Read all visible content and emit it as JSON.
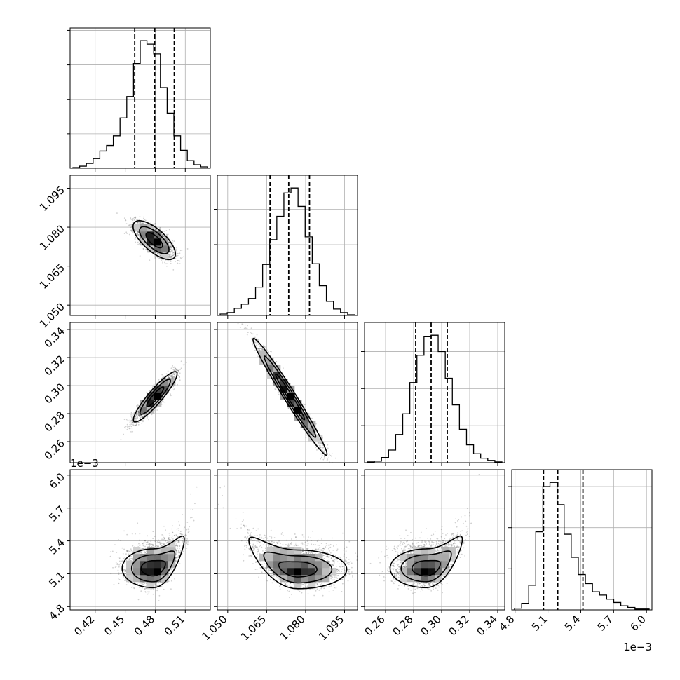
{
  "chart_data": {
    "type": "corner",
    "title": "",
    "parameters": [
      {
        "range": [
          0.395,
          0.535
        ],
        "ticks": [
          0.42,
          0.45,
          0.48,
          0.51
        ],
        "tick_labels": [
          "0.42",
          "0.45",
          "0.48",
          "0.51"
        ],
        "offset_label": "",
        "quantiles": [
          0.4595,
          0.4795,
          0.499
        ],
        "hist": [
          1,
          3,
          7,
          14,
          25,
          33,
          47,
          73,
          104,
          152,
          185,
          180,
          166,
          117,
          80,
          47,
          26,
          11,
          5,
          2
        ]
      },
      {
        "range": [
          1.046,
          1.1
        ],
        "ticks": [
          1.05,
          1.065,
          1.08,
          1.095
        ],
        "tick_labels": [
          "1.050",
          "1.065",
          "1.080",
          "1.095"
        ],
        "offset_label": "",
        "quantiles": [
          1.0663,
          1.0735,
          1.0815
        ],
        "hist": [
          2,
          4,
          10,
          16,
          24,
          40,
          72,
          107,
          140,
          173,
          180,
          154,
          111,
          73,
          42,
          20,
          9,
          4,
          1
        ]
      },
      {
        "range": [
          0.245,
          0.345
        ],
        "ticks": [
          0.26,
          0.28,
          0.3,
          0.32,
          0.34
        ],
        "tick_labels": [
          "0.26",
          "0.28",
          "0.30",
          "0.32",
          "0.34"
        ],
        "offset_label": "",
        "quantiles": [
          0.2815,
          0.2925,
          0.304
        ],
        "hist": [
          1,
          2,
          7,
          17,
          38,
          66,
          108,
          145,
          170,
          172,
          150,
          114,
          78,
          45,
          24,
          12,
          6,
          3,
          1
        ]
      },
      {
        "range": [
          0.00477,
          0.00605
        ],
        "ticks": [
          0.0048,
          0.0051,
          0.0054,
          0.0057,
          0.006
        ],
        "tick_labels": [
          "4.8",
          "5.1",
          "5.4",
          "5.7",
          "6.0"
        ],
        "offset_label": "1e−3",
        "quantiles": [
          0.00506,
          0.00519,
          0.00542
        ],
        "hist": [
          2,
          8,
          30,
          95,
          150,
          155,
          128,
          92,
          64,
          43,
          32,
          22,
          18,
          13,
          9,
          5,
          3,
          1,
          1
        ]
      }
    ],
    "pairs": [
      {
        "row": 1,
        "col": 0,
        "center": [
          0.479,
          1.075
        ],
        "slope": -0.65,
        "spread": [
          0.0092,
          0.0023
        ],
        "curvature": 0
      },
      {
        "row": 2,
        "col": 0,
        "center": [
          0.48,
          0.292
        ],
        "slope": 1.05,
        "spread": [
          0.0095,
          0.0032
        ],
        "curvature": 0
      },
      {
        "row": 2,
        "col": 1,
        "center": [
          1.074,
          0.292
        ],
        "slope": -1.55,
        "spread": [
          0.0062,
          0.0034
        ],
        "curvature": 0
      },
      {
        "row": 3,
        "col": 0,
        "center": [
          0.478,
          0.00515
        ],
        "slope": 0,
        "spread": [
          0.0135,
          7e-05
        ],
        "curvature": 0.0085
      },
      {
        "row": 3,
        "col": 1,
        "center": [
          1.077,
          0.00514
        ],
        "slope": 0,
        "spread": [
          0.0082,
          7e-05
        ],
        "curvature": -0.011
      },
      {
        "row": 3,
        "col": 2,
        "center": [
          0.289,
          0.00515
        ],
        "slope": 0,
        "spread": [
          0.0112,
          7e-05
        ],
        "curvature": 0.0068
      }
    ],
    "grid": true,
    "contour_levels": [
      0.39,
      0.86,
      0.99
    ]
  }
}
